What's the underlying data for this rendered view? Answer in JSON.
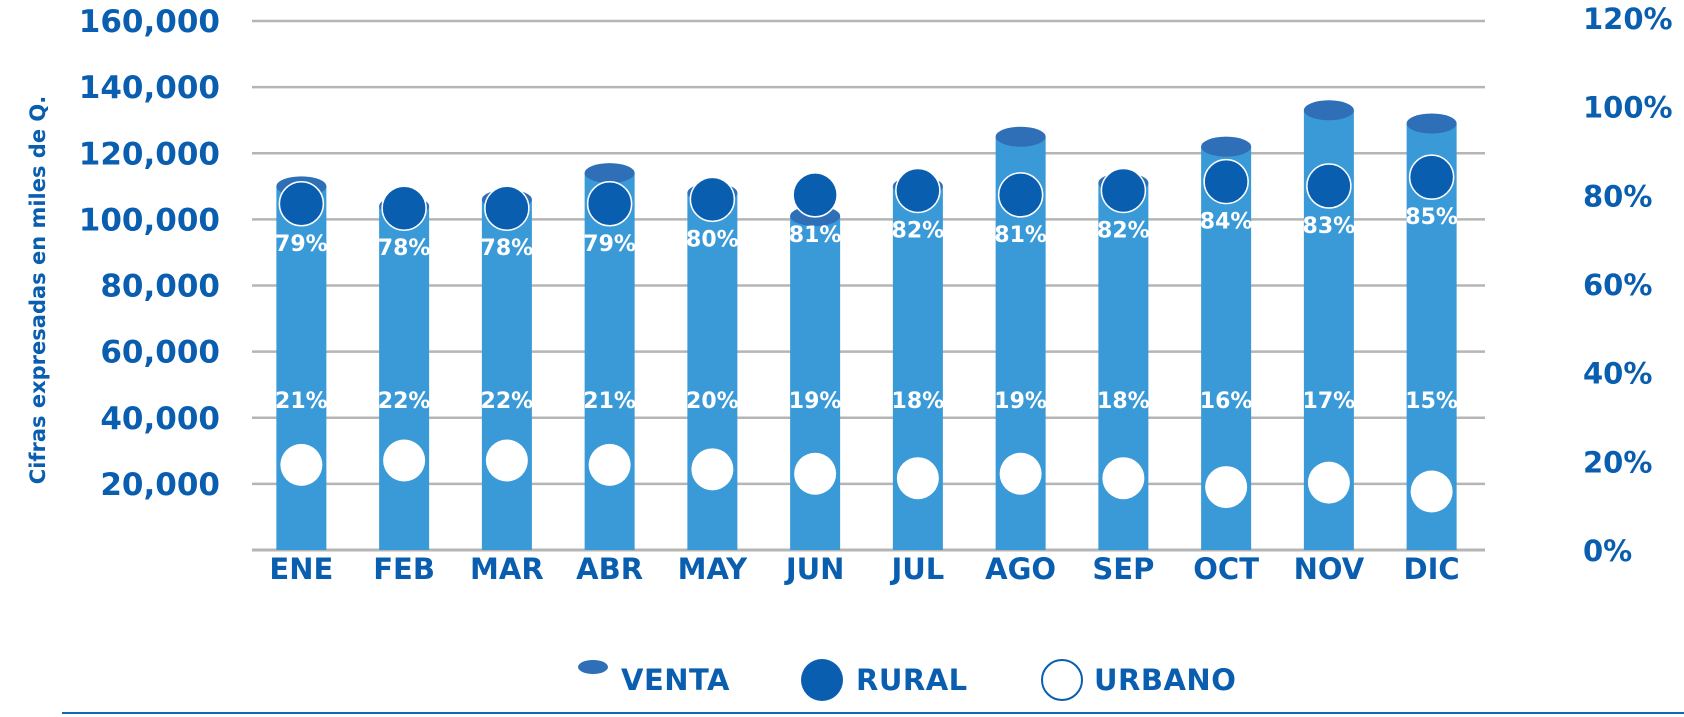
{
  "chart_data": {
    "type": "bar",
    "categories": [
      "ENE",
      "FEB",
      "MAR",
      "ABR",
      "MAY",
      "JUN",
      "JUL",
      "AGO",
      "SEP",
      "OCT",
      "NOV",
      "DIC"
    ],
    "series": [
      {
        "name": "VENTA",
        "values": [
          110000,
          104000,
          106000,
          114000,
          108000,
          101000,
          110000,
          125000,
          111000,
          122000,
          133000,
          129000
        ]
      },
      {
        "name": "RURAL",
        "values": [
          79,
          78,
          78,
          79,
          80,
          81,
          82,
          81,
          82,
          84,
          83,
          85
        ]
      },
      {
        "name": "URBANO",
        "values": [
          21,
          22,
          22,
          21,
          20,
          19,
          18,
          19,
          18,
          16,
          17,
          15
        ]
      }
    ],
    "rural_labels": [
      "79%",
      "78%",
      "78%",
      "79%",
      "80%",
      "81%",
      "82%",
      "81%",
      "82%",
      "84%",
      "83%",
      "85%"
    ],
    "urbano_labels": [
      "21%",
      "22%",
      "22%",
      "21%",
      "20%",
      "19%",
      "18%",
      "19%",
      "18%",
      "16%",
      "17%",
      "15%"
    ],
    "ylabel": "Cifras expresadas en miles de Q.",
    "ylim": [
      0,
      160000
    ],
    "y_ticks": [
      "160,000",
      "140,000",
      "120,000",
      "100,000",
      "80,000",
      "60,000",
      "40,000",
      "20,000"
    ],
    "y2lim": [
      0,
      120
    ],
    "y2_ticks": [
      "120%",
      "100%",
      "80%",
      "60%",
      "40%",
      "20%",
      "0%"
    ],
    "grid": true,
    "legend_position": "bottom-center",
    "colors": {
      "bar": "#3a9ad8",
      "bar_top": "#2e6fb8",
      "rural": "#0a5eb0",
      "urbano": "#ffffff",
      "text": "#0a5eb0",
      "grid": "#b5b5b5"
    }
  },
  "legend": {
    "items": [
      {
        "label": "VENTA",
        "icon": "ellipse-dark-blue-icon"
      },
      {
        "label": "RURAL",
        "icon": "circle-blue-icon"
      },
      {
        "label": "URBANO",
        "icon": "circle-white-icon"
      }
    ]
  }
}
